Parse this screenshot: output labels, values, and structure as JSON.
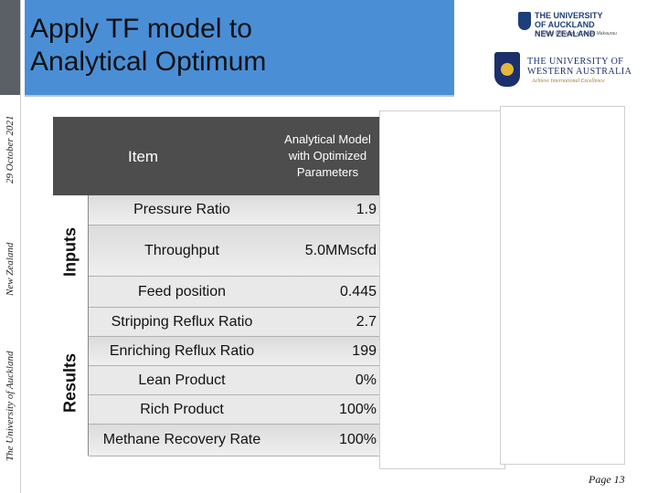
{
  "side_text": {
    "date": "29 October 2021",
    "country": "New Zealand",
    "university": "The University of Auckland"
  },
  "title": {
    "line1": "Apply TF model to",
    "line2": "Analytical Optimum"
  },
  "logos": {
    "auckland_line1": "THE UNIVERSITY",
    "auckland_line2": "OF AUCKLAND",
    "auckland_line3": "NEW ZEALAND",
    "auckland_sub": "Te Whare Wānanga o Tāmaki Makaurau",
    "uwa_line1": "THE UNIVERSITY OF",
    "uwa_line2": "WESTERN AUSTRALIA",
    "uwa_sub": "Achieve International Excellence"
  },
  "table": {
    "header_item": "Item",
    "header_model": "Analytical Model with Optimized Parameters",
    "group_inputs": "Inputs",
    "group_results": "Results",
    "rows": [
      {
        "item": "Pressure Ratio",
        "value": "1.9"
      },
      {
        "item": "Throughput",
        "value": "5.0MMscfd"
      },
      {
        "item": "Feed position",
        "value": "0.445"
      },
      {
        "item": "Stripping Reflux Ratio",
        "value": "2.7"
      },
      {
        "item": "Enriching Reflux Ratio",
        "value": "199"
      },
      {
        "item": "Lean Product",
        "value": "0%"
      },
      {
        "item": "Rich Product",
        "value": "100%"
      },
      {
        "item": "Methane Recovery Rate",
        "value": "100%"
      }
    ]
  },
  "footer": {
    "page": "Page 13"
  }
}
